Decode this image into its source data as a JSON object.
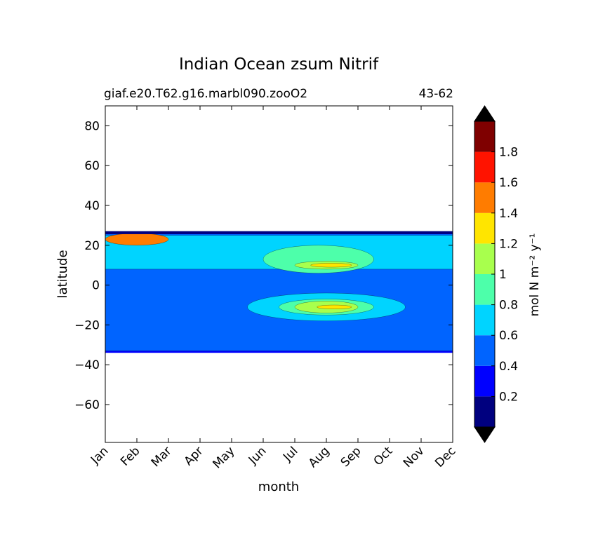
{
  "chart_data": {
    "type": "heatmap",
    "title": "Indian Ocean zsum Nitrif",
    "subtitle_left": "giaf.e20.T62.g16.marbl090.zooO2",
    "subtitle_right": "43-62",
    "xlabel": "month",
    "ylabel": "latitude",
    "x_categories": [
      "Jan",
      "Feb",
      "Mar",
      "Apr",
      "May",
      "Jun",
      "Jul",
      "Aug",
      "Sep",
      "Oct",
      "Nov",
      "Dec"
    ],
    "y_ticks": [
      "80",
      "60",
      "40",
      "20",
      "0",
      "−20",
      "−40",
      "−60"
    ],
    "y_tick_values": [
      80,
      60,
      40,
      20,
      0,
      -20,
      -40,
      -60
    ],
    "ylim": [
      -79,
      90
    ],
    "data_lat_range": [
      -34,
      27
    ],
    "colorbar": {
      "label": "mol N m⁻² y⁻¹",
      "levels": [
        0,
        0.2,
        0.4,
        0.6,
        0.8,
        1.0,
        1.2,
        1.4,
        1.6,
        1.8,
        2.0
      ],
      "tick_labels": [
        "0.2",
        "0.4",
        "0.6",
        "0.8",
        "1",
        "1.2",
        "1.4",
        "1.6",
        "1.8"
      ],
      "tick_values": [
        0.2,
        0.4,
        0.6,
        0.8,
        1.0,
        1.2,
        1.4,
        1.6,
        1.8
      ],
      "colors": [
        "#00007f",
        "#0000ff",
        "#0064ff",
        "#00d4ff",
        "#4dffaa",
        "#a8ff4d",
        "#ffe500",
        "#ff7c00",
        "#ff1300",
        "#7f0000"
      ],
      "extend": "both",
      "under_color": "#000000",
      "over_color": "#000000"
    },
    "contour_features": [
      {
        "level": 0.4,
        "region": "main band",
        "month_range": [
          0,
          11
        ],
        "lat_range": [
          -33,
          27
        ]
      },
      {
        "level": 0.6,
        "region": "northern band",
        "month_range": [
          0,
          11
        ],
        "lat_range": [
          8,
          25
        ]
      },
      {
        "level": 0.6,
        "region": "southern maximum",
        "month_range": [
          4.5,
          9.5
        ],
        "lat_range": [
          -18,
          -4
        ]
      },
      {
        "level": 0.8,
        "region": "northern summer maximum",
        "month_range": [
          5,
          8.5
        ],
        "lat_range": [
          6,
          20
        ]
      },
      {
        "level": 1.0,
        "region": "northern summer maximum",
        "month_range": [
          6,
          8
        ],
        "lat_range": [
          8,
          12
        ]
      },
      {
        "level": 1.2,
        "region": "northern summer core",
        "month_range": [
          6.5,
          7.8
        ],
        "lat_range": [
          9,
          11
        ]
      },
      {
        "level": 0.8,
        "region": "southern summer maximum",
        "month_range": [
          5.5,
          8.5
        ],
        "lat_range": [
          -15,
          -7
        ]
      },
      {
        "level": 1.0,
        "region": "southern summer maximum",
        "month_range": [
          6,
          8
        ],
        "lat_range": [
          -14,
          -8
        ]
      },
      {
        "level": 1.2,
        "region": "southern summer core",
        "month_range": [
          6.7,
          7.8
        ],
        "lat_range": [
          -12,
          -10
        ]
      },
      {
        "level": 1.4,
        "region": "northern coastal edge",
        "month_range": [
          0,
          2
        ],
        "lat_range": [
          20,
          26
        ]
      }
    ]
  }
}
